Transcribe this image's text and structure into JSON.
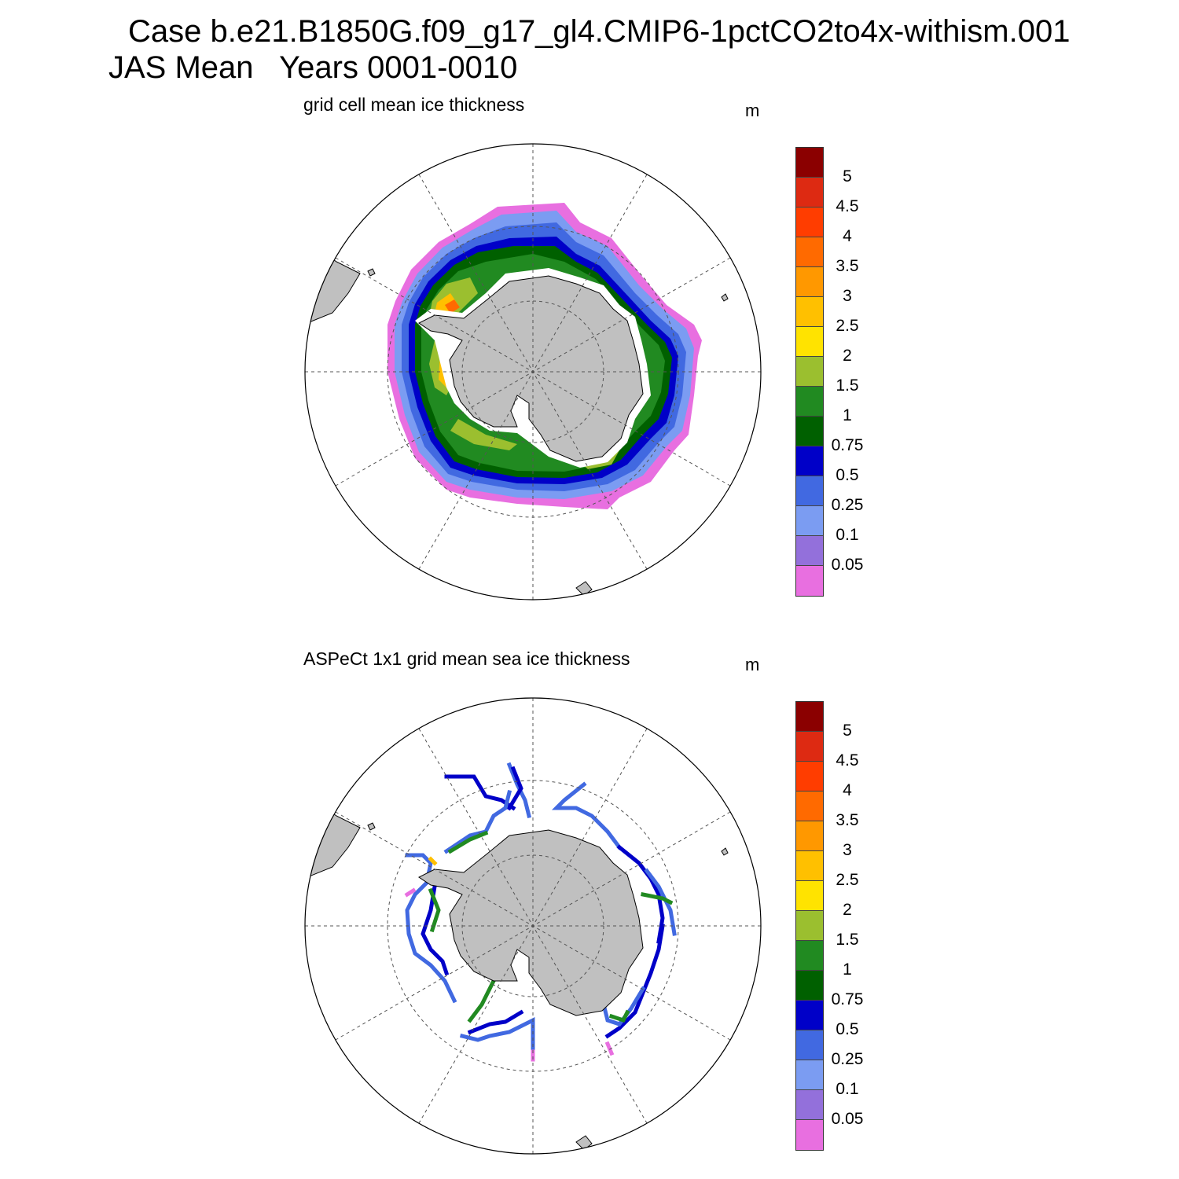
{
  "figure": {
    "title_line1": "Case b.e21.B1850G.f09_g17_gl4.CMIP6-1pctCO2to4x-withism.001",
    "title_line2": "JAS Mean   Years 0001-0010"
  },
  "panels": [
    {
      "title": "grid cell mean ice thickness",
      "unit": "m",
      "kind": "model"
    },
    {
      "title": "ASPeCt 1x1 grid mean sea ice thickness",
      "unit": "m",
      "kind": "obs"
    }
  ],
  "colorbar": {
    "labels": [
      "5",
      "4.5",
      "4",
      "3.5",
      "3",
      "2.5",
      "2",
      "1.5",
      "1",
      "0.75",
      "0.5",
      "0.25",
      "0.1",
      "0.05"
    ],
    "colors_top_to_bottom": [
      "#8b0000",
      "#dd2a12",
      "#ff3d00",
      "#ff6a00",
      "#ff9800",
      "#ffc000",
      "#ffe300",
      "#9bbf2f",
      "#218a21",
      "#006000",
      "#0000c8",
      "#4169e1",
      "#7b9cf2",
      "#9370db",
      "#e86fe0"
    ]
  },
  "colors": {
    "land": "#c0c0c0",
    "coast": "#000000",
    "grid": "#555555"
  }
}
